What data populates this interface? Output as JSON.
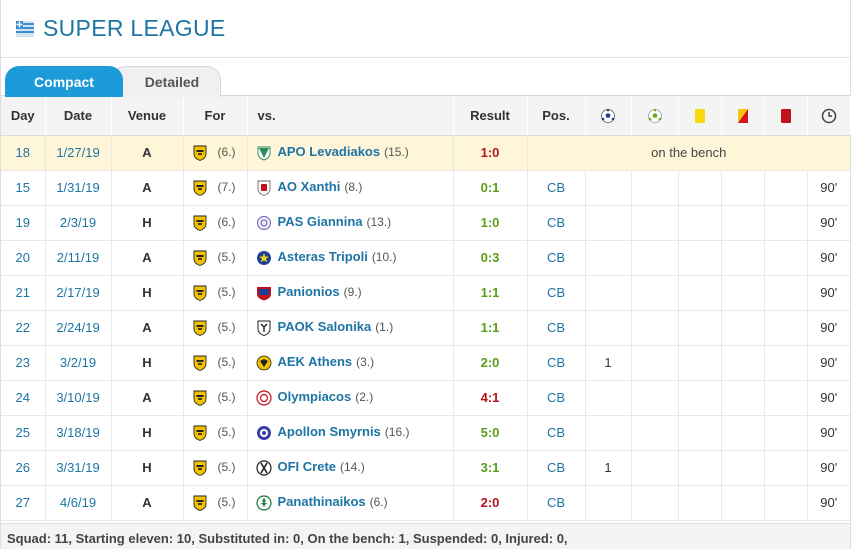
{
  "league": {
    "title": "SUPER LEAGUE"
  },
  "tabs": {
    "compact": "Compact",
    "detailed": "Detailed"
  },
  "headers": {
    "day": "Day",
    "date": "Date",
    "venue": "Venue",
    "for": "For",
    "vs": "vs.",
    "result": "Result",
    "pos": "Pos."
  },
  "colors": {
    "accent": "#1d9ad8",
    "link": "#1d75a3",
    "win": "#5a9e1a",
    "loss": "#b4121b",
    "highlight": "#fff6d9"
  },
  "bench_text": "on the bench",
  "rows": [
    {
      "day": "18",
      "date": "1/27/19",
      "venue": "A",
      "for_rank": "(6.)",
      "opponent": "APO Levadiakos",
      "opp_rank": "(15.)",
      "result": "1:0",
      "result_type": "loss",
      "pos": "",
      "goals": "",
      "minutes": "",
      "bench": true
    },
    {
      "day": "15",
      "date": "1/31/19",
      "venue": "A",
      "for_rank": "(7.)",
      "opponent": "AO Xanthi",
      "opp_rank": "(8.)",
      "result": "0:1",
      "result_type": "win",
      "pos": "CB",
      "goals": "",
      "minutes": "90'"
    },
    {
      "day": "19",
      "date": "2/3/19",
      "venue": "H",
      "for_rank": "(6.)",
      "opponent": "PAS Giannina",
      "opp_rank": "(13.)",
      "result": "1:0",
      "result_type": "win",
      "pos": "CB",
      "goals": "",
      "minutes": "90'"
    },
    {
      "day": "20",
      "date": "2/11/19",
      "venue": "A",
      "for_rank": "(5.)",
      "opponent": "Asteras Tripoli",
      "opp_rank": "(10.)",
      "result": "0:3",
      "result_type": "win",
      "pos": "CB",
      "goals": "",
      "minutes": "90'"
    },
    {
      "day": "21",
      "date": "2/17/19",
      "venue": "H",
      "for_rank": "(5.)",
      "opponent": "Panionios",
      "opp_rank": "(9.)",
      "result": "1:1",
      "result_type": "win",
      "pos": "CB",
      "goals": "",
      "minutes": "90'"
    },
    {
      "day": "22",
      "date": "2/24/19",
      "venue": "A",
      "for_rank": "(5.)",
      "opponent": "PAOK Salonika",
      "opp_rank": "(1.)",
      "result": "1:1",
      "result_type": "win",
      "pos": "CB",
      "goals": "",
      "minutes": "90'"
    },
    {
      "day": "23",
      "date": "3/2/19",
      "venue": "H",
      "for_rank": "(5.)",
      "opponent": "AEK Athens",
      "opp_rank": "(3.)",
      "result": "2:0",
      "result_type": "win",
      "pos": "CB",
      "goals": "1",
      "minutes": "90'"
    },
    {
      "day": "24",
      "date": "3/10/19",
      "venue": "A",
      "for_rank": "(5.)",
      "opponent": "Olympiacos",
      "opp_rank": "(2.)",
      "result": "4:1",
      "result_type": "loss",
      "pos": "CB",
      "goals": "",
      "minutes": "90'"
    },
    {
      "day": "25",
      "date": "3/18/19",
      "venue": "H",
      "for_rank": "(5.)",
      "opponent": "Apollon Smyrnis",
      "opp_rank": "(16.)",
      "result": "5:0",
      "result_type": "win",
      "pos": "CB",
      "goals": "",
      "minutes": "90'"
    },
    {
      "day": "26",
      "date": "3/31/19",
      "venue": "H",
      "for_rank": "(5.)",
      "opponent": "OFI Crete",
      "opp_rank": "(14.)",
      "result": "3:1",
      "result_type": "win",
      "pos": "CB",
      "goals": "1",
      "minutes": "90'"
    },
    {
      "day": "27",
      "date": "4/6/19",
      "venue": "A",
      "for_rank": "(5.)",
      "opponent": "Panathinaikos",
      "opp_rank": "(6.)",
      "result": "2:0",
      "result_type": "loss",
      "pos": "CB",
      "goals": "",
      "minutes": "90'"
    }
  ],
  "summary": "Squad: 11, Starting eleven: 10, Substituted in: 0, On the bench: 1, Suspended: 0, Injured: 0,"
}
